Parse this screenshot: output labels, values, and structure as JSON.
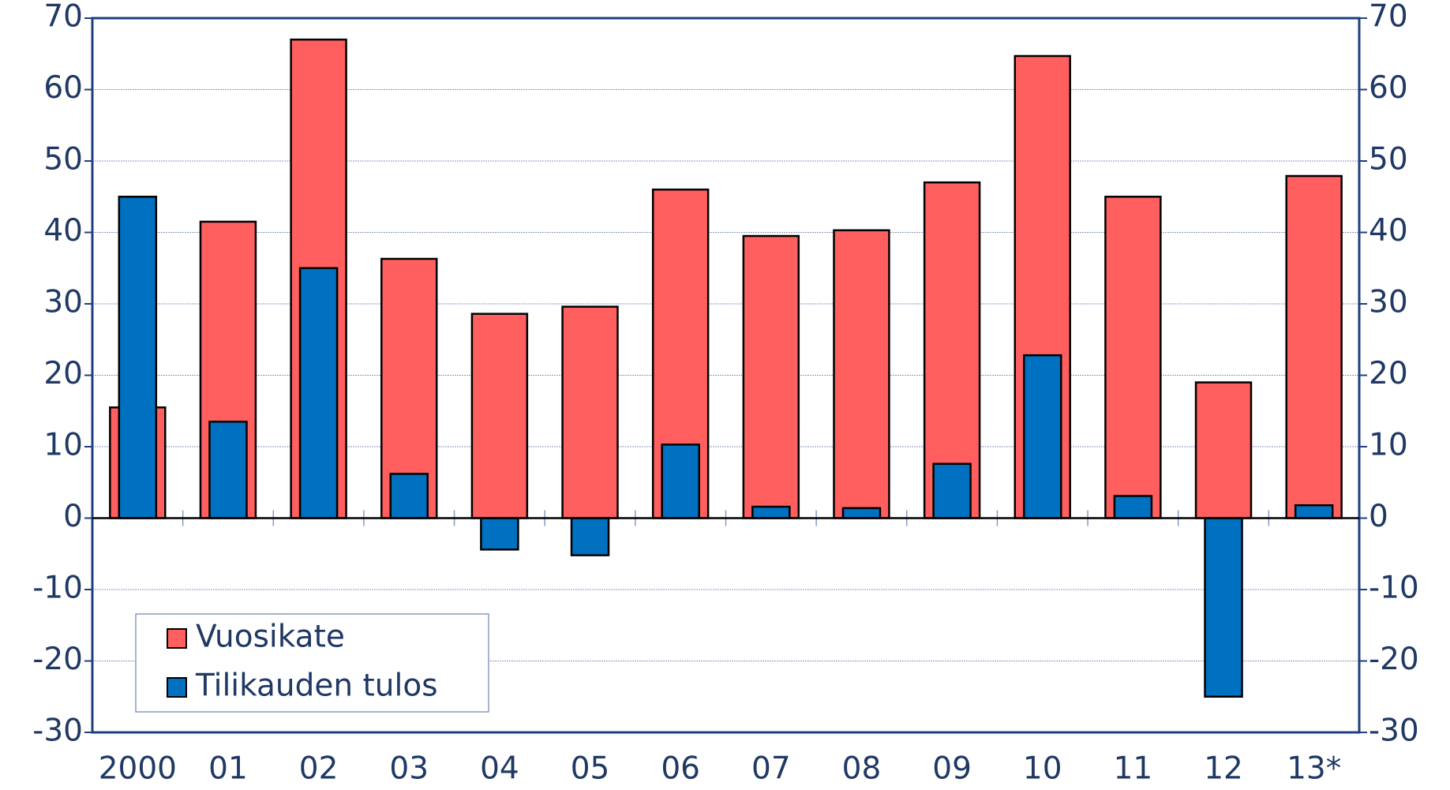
{
  "chart_data": {
    "type": "bar",
    "categories": [
      "2000",
      "01",
      "02",
      "03",
      "04",
      "05",
      "06",
      "07",
      "08",
      "09",
      "10",
      "11",
      "12",
      "13*"
    ],
    "series": [
      {
        "name": "Vuosikate",
        "color": "#ff5f5f",
        "values": [
          15.5,
          41.5,
          67,
          36.3,
          28.6,
          29.6,
          46,
          39.5,
          40.3,
          47,
          64.7,
          45,
          19,
          47.9
        ]
      },
      {
        "name": "Tilikauden tulos",
        "color": "#0070c0",
        "values": [
          45,
          13.5,
          35,
          6.2,
          -4.4,
          -5.2,
          10.3,
          1.6,
          1.4,
          7.6,
          22.8,
          3.1,
          -25,
          1.8
        ]
      }
    ],
    "ylim": [
      -30,
      70
    ],
    "yticks": [
      -30,
      -20,
      -10,
      0,
      10,
      20,
      30,
      40,
      50,
      60,
      70
    ],
    "y2lim": [
      -30,
      70
    ],
    "y2ticks": [
      -30,
      -20,
      -10,
      0,
      10,
      20,
      30,
      40,
      50,
      60,
      70
    ],
    "grid": true,
    "legend": "lower left"
  }
}
